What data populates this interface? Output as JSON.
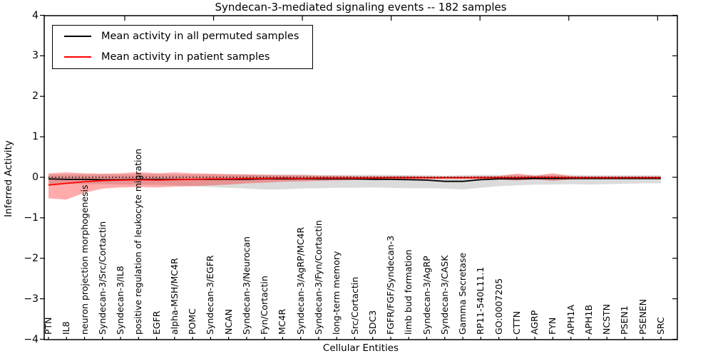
{
  "chart_data": {
    "type": "line",
    "title": "Syndecan-3-mediated signaling events -- 182 samples",
    "xlabel": "Cellular Entities",
    "ylabel": "Inferred Activity",
    "ylim": [
      -4,
      4
    ],
    "yticks": [
      4,
      3,
      2,
      1,
      0,
      -1,
      -2,
      -3,
      -4
    ],
    "grid": false,
    "legend_position": "upper left",
    "reference_line": {
      "y": 0,
      "style": "dotted",
      "color": "#000000"
    },
    "categories": [
      "PTN",
      "IL8",
      "neuron projection morphogenesis",
      "Syndecan-3/Src/Cortactin",
      "Syndecan-3/IL8",
      "positive regulation of leukocyte migration",
      "EGFR",
      "alpha-MSH/MC4R",
      "POMC",
      "Syndecan-3/EGFR",
      "NCAN",
      "Syndecan-3/Neurocan",
      "Fyn/Cortactin",
      "MC4R",
      "Syndecan-3/AgRP/MC4R",
      "Syndecan-3/Fyn/Cortactin",
      "long-term memory",
      "Src/Cortactin",
      "SDC3",
      "FGFR/FGF/Syndecan-3",
      "limb bud formation",
      "Syndecan-3/AgRP",
      "Syndecan-3/CASK",
      "Gamma Secretase",
      "RP11-540L11.1",
      "GO:0007205",
      "CTTN",
      "AGRP",
      "FYN",
      "APH1A",
      "APH1B",
      "NCSTN",
      "PSEN1",
      "PSENEN",
      "SRC"
    ],
    "series": [
      {
        "name": "Mean activity in all permuted samples",
        "color": "#000000",
        "band_color": "rgba(0,0,0,0.14)",
        "values": [
          -0.04,
          -0.05,
          -0.05,
          -0.06,
          -0.06,
          -0.05,
          -0.05,
          -0.05,
          -0.05,
          -0.05,
          -0.05,
          -0.05,
          -0.04,
          -0.04,
          -0.04,
          -0.04,
          -0.04,
          -0.04,
          -0.05,
          -0.05,
          -0.06,
          -0.07,
          -0.1,
          -0.1,
          -0.06,
          -0.04,
          -0.04,
          -0.03,
          -0.03,
          -0.03,
          -0.03,
          -0.03,
          -0.03,
          -0.03,
          -0.03
        ],
        "band_upper": [
          0.07,
          0.07,
          0.07,
          0.07,
          0.07,
          0.08,
          0.08,
          0.07,
          0.07,
          0.07,
          0.07,
          0.07,
          0.07,
          0.07,
          0.07,
          0.06,
          0.06,
          0.06,
          0.06,
          0.06,
          0.05,
          0.05,
          0.04,
          0.05,
          0.06,
          0.06,
          0.06,
          0.06,
          0.06,
          0.06,
          0.05,
          0.05,
          0.05,
          0.05,
          0.05
        ],
        "band_lower": [
          -0.16,
          -0.16,
          -0.17,
          -0.17,
          -0.18,
          -0.18,
          -0.19,
          -0.2,
          -0.22,
          -0.24,
          -0.26,
          -0.28,
          -0.3,
          -0.3,
          -0.28,
          -0.27,
          -0.26,
          -0.26,
          -0.25,
          -0.26,
          -0.27,
          -0.27,
          -0.28,
          -0.3,
          -0.26,
          -0.22,
          -0.2,
          -0.18,
          -0.18,
          -0.17,
          -0.18,
          -0.17,
          -0.16,
          -0.15,
          -0.15
        ]
      },
      {
        "name": "Mean activity in patient samples",
        "color": "#ff0000",
        "band_color": "rgba(255,0,0,0.33)",
        "values": [
          -0.19,
          -0.15,
          -0.11,
          -0.08,
          -0.07,
          -0.06,
          -0.07,
          -0.06,
          -0.05,
          -0.04,
          -0.04,
          -0.03,
          -0.03,
          -0.02,
          -0.03,
          -0.02,
          -0.02,
          -0.02,
          -0.02,
          -0.01,
          -0.01,
          -0.01,
          -0.01,
          -0.01,
          -0.01,
          -0.01,
          -0.01,
          0.0,
          0.0,
          -0.01,
          -0.01,
          -0.01,
          -0.01,
          -0.01,
          -0.01
        ],
        "band_upper": [
          0.1,
          0.12,
          0.1,
          0.09,
          0.1,
          0.13,
          0.1,
          0.12,
          0.1,
          0.09,
          0.08,
          0.07,
          0.06,
          0.05,
          0.05,
          0.04,
          0.04,
          0.03,
          0.03,
          0.03,
          0.03,
          0.02,
          0.02,
          0.02,
          0.03,
          0.03,
          0.09,
          0.04,
          0.1,
          0.03,
          0.02,
          0.02,
          0.02,
          0.02,
          0.02
        ],
        "band_lower": [
          -0.52,
          -0.55,
          -0.38,
          -0.28,
          -0.25,
          -0.24,
          -0.25,
          -0.23,
          -0.22,
          -0.2,
          -0.18,
          -0.15,
          -0.13,
          -0.11,
          -0.1,
          -0.09,
          -0.08,
          -0.07,
          -0.06,
          -0.05,
          -0.05,
          -0.05,
          -0.04,
          -0.04,
          -0.05,
          -0.05,
          -0.08,
          -0.05,
          -0.09,
          -0.05,
          -0.04,
          -0.04,
          -0.03,
          -0.03,
          -0.03
        ]
      }
    ]
  }
}
